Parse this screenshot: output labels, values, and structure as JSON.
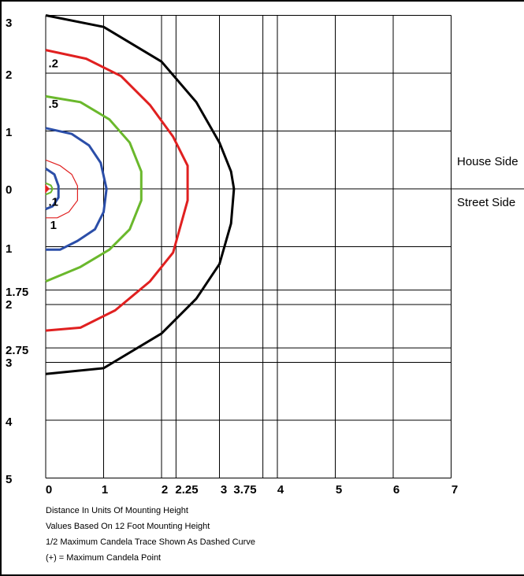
{
  "chart_data": {
    "type": "line",
    "title": "",
    "xlabel": "Distance In Units Of Mounting Height",
    "ylabel": "",
    "xlim": [
      0,
      7
    ],
    "ylim": [
      -5,
      3
    ],
    "grid": true,
    "x_ticks": [
      {
        "value": 0,
        "label": "0"
      },
      {
        "value": 1,
        "label": "1"
      },
      {
        "value": 2,
        "label": "2"
      },
      {
        "value": 2.25,
        "label": "2.25"
      },
      {
        "value": 3,
        "label": "3"
      },
      {
        "value": 3.75,
        "label": "3.75"
      },
      {
        "value": 4,
        "label": "4"
      },
      {
        "value": 5,
        "label": "5"
      },
      {
        "value": 6,
        "label": "6"
      },
      {
        "value": 7,
        "label": "7"
      }
    ],
    "y_ticks": [
      {
        "value": 3,
        "label": "3"
      },
      {
        "value": 2,
        "label": "2"
      },
      {
        "value": 1,
        "label": "1"
      },
      {
        "value": 0,
        "label": "0"
      },
      {
        "value": -1,
        "label": "1"
      },
      {
        "value": -1.75,
        "label": "1.75"
      },
      {
        "value": -2,
        "label": "2"
      },
      {
        "value": -2.75,
        "label": "2.75"
      },
      {
        "value": -3,
        "label": "3"
      },
      {
        "value": -4,
        "label": "4"
      },
      {
        "value": -5,
        "label": "5"
      }
    ],
    "series": [
      {
        "name": "",
        "color": "#000000",
        "width": 3,
        "x": [
          0,
          1.0,
          2.0,
          2.6,
          3.0,
          3.2,
          3.25,
          3.2,
          3.0,
          2.6,
          2.0,
          1.0,
          0
        ],
        "y": [
          3.0,
          2.8,
          2.2,
          1.5,
          0.8,
          0.3,
          0,
          -0.6,
          -1.3,
          -1.9,
          -2.5,
          -3.1,
          -3.2
        ]
      },
      {
        "name": "",
        "color": "#e02020",
        "width": 3,
        "x": [
          0,
          0.7,
          1.3,
          1.8,
          2.2,
          2.45,
          2.45,
          2.2,
          1.8,
          1.2,
          0.6,
          0
        ],
        "y": [
          2.4,
          2.25,
          1.95,
          1.45,
          0.9,
          0.4,
          -0.2,
          -1.1,
          -1.6,
          -2.1,
          -2.4,
          -2.45
        ]
      },
      {
        "name": "",
        "color": "#6ab82c",
        "width": 3,
        "x": [
          0,
          0.6,
          1.1,
          1.45,
          1.65,
          1.65,
          1.45,
          1.1,
          0.6,
          0
        ],
        "y": [
          1.6,
          1.5,
          1.2,
          0.8,
          0.3,
          -0.2,
          -0.7,
          -1.05,
          -1.35,
          -1.6
        ]
      },
      {
        "name": "",
        "color": "#2b4ea8",
        "width": 3,
        "x": [
          0,
          0.45,
          0.75,
          0.95,
          1.05,
          1.0,
          0.85,
          0.55,
          0.25,
          0
        ],
        "y": [
          1.05,
          0.95,
          0.75,
          0.45,
          0,
          -0.4,
          -0.7,
          -0.9,
          -1.05,
          -1.05
        ]
      },
      {
        "name": "",
        "color": "#e02020",
        "width": 1.2,
        "x": [
          0,
          0.25,
          0.45,
          0.55,
          0.55,
          0.4,
          0.2,
          0
        ],
        "y": [
          0.5,
          0.4,
          0.25,
          0.05,
          -0.2,
          -0.4,
          -0.5,
          -0.5
        ]
      },
      {
        "name": "",
        "color": "#2b4ea8",
        "width": 3,
        "x": [
          0,
          0.15,
          0.22,
          0.22,
          0.12,
          0
        ],
        "y": [
          0.35,
          0.25,
          0.05,
          -0.15,
          -0.3,
          -0.35
        ]
      },
      {
        "name": "",
        "color": "#6ab82c",
        "width": 2,
        "x": [
          0,
          0.09,
          0.12,
          0.09,
          0
        ],
        "y": [
          0.1,
          0.06,
          0,
          -0.06,
          -0.1
        ]
      }
    ],
    "annotations": [
      {
        "text": ".2",
        "x": 0.02,
        "y": 2.2
      },
      {
        "text": ".5",
        "x": 0.02,
        "y": 1.5
      },
      {
        "text": ".1",
        "x": 0.02,
        "y": -0.2
      },
      {
        "text": "1",
        "x": 0.05,
        "y": -0.6
      }
    ],
    "marker": {
      "x": 0,
      "y": 0,
      "color": "#e02020"
    },
    "side_labels": {
      "house": "House Side",
      "street": "Street Side"
    },
    "notes": [
      "Distance In Units Of Mounting Height",
      "Values Based On 12 Foot Mounting Height",
      "1/2 Maximum Candela Trace Shown As Dashed Curve",
      "(+) = Maximum Candela Point"
    ]
  }
}
